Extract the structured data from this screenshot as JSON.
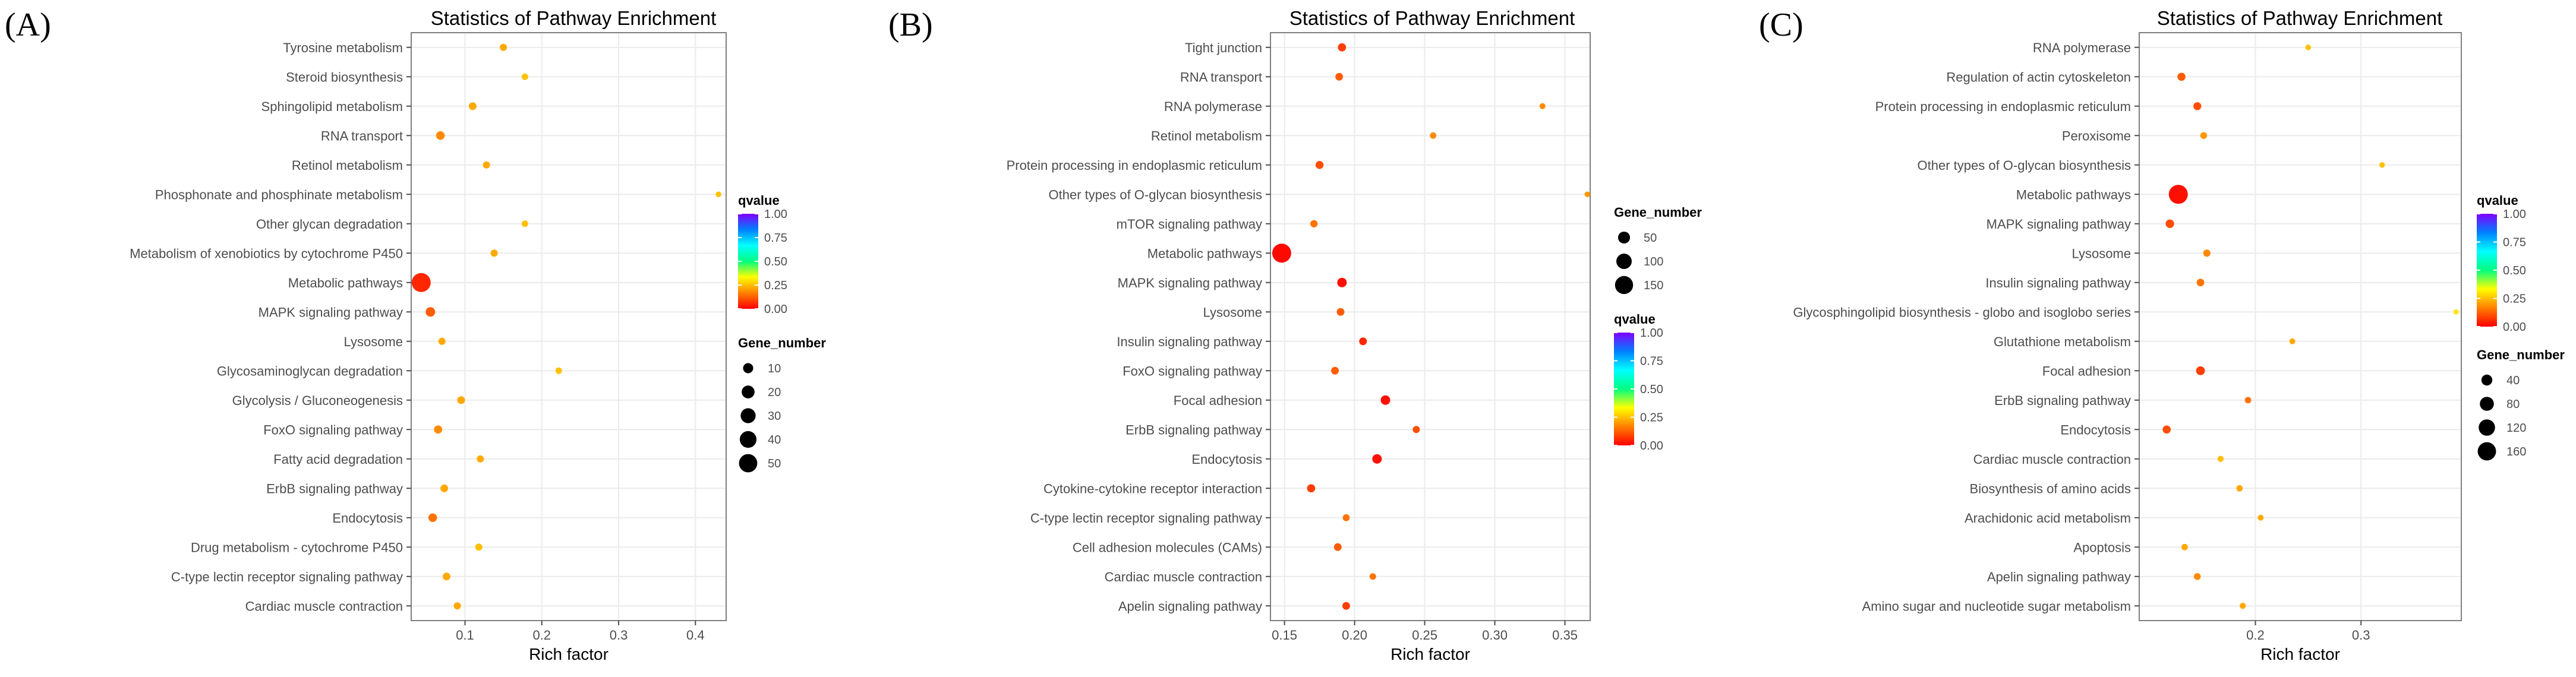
{
  "colors": {
    "panel_bg": "#ffffff",
    "panel_border": "#7f7f7f",
    "grid": "#ebebeb",
    "text": "#000000",
    "axis_text": "#4d4d4d",
    "gradient_stops": [
      "#ff0000",
      "#ff8000",
      "#ffff00",
      "#00ff80",
      "#00ffff",
      "#0080ff",
      "#8000ff"
    ]
  },
  "chart_data": [
    {
      "id": "A",
      "panel_label": "(A)",
      "type": "scatter",
      "title": "Statistics of Pathway Enrichment",
      "xlabel": "Rich factor",
      "ylabel": "",
      "xlim": [
        0.03,
        0.44
      ],
      "xticks": [
        0.1,
        0.2,
        0.3,
        0.4
      ],
      "xtick_labels": [
        "0.1",
        "0.2",
        "0.3",
        "0.4"
      ],
      "legend_qvalue": {
        "title": "qvalue",
        "range": [
          0,
          1
        ],
        "ticks": [
          "1.00",
          "0.75",
          "0.50",
          "0.25",
          "0.00"
        ],
        "position": "right"
      },
      "legend_size": {
        "title": "Gene_number",
        "min": 1,
        "max": 55,
        "ticks": [
          10,
          20,
          30,
          40,
          50
        ],
        "tick_labels": [
          "10",
          "20",
          "30",
          "40",
          "50"
        ],
        "position": "right"
      },
      "categories": [
        "Tyrosine metabolism",
        "Steroid biosynthesis",
        "Sphingolipid metabolism",
        "RNA transport",
        "Retinol metabolism",
        "Phosphonate and phosphinate metabolism",
        "Other glycan degradation",
        "Metabolism of xenobiotics by cytochrome P450",
        "Metabolic pathways",
        "MAPK signaling pathway",
        "Lysosome",
        "Glycosaminoglycan degradation",
        "Glycolysis / Gluconeogenesis",
        "FoxO signaling pathway",
        "Fatty acid degradation",
        "ErbB signaling pathway",
        "Endocytosis",
        "Drug metabolism - cytochrome P450",
        "C-type lectin receptor signaling pathway",
        "Cardiac muscle contraction"
      ],
      "rich_factor": [
        0.15,
        0.178,
        0.11,
        0.068,
        0.128,
        0.43,
        0.178,
        0.138,
        0.043,
        0.055,
        0.07,
        0.222,
        0.095,
        0.065,
        0.12,
        0.073,
        0.058,
        0.118,
        0.076,
        0.09
      ],
      "gene_number": [
        3,
        2,
        4,
        6,
        3,
        1,
        2,
        3,
        55,
        8,
        3,
        2,
        4,
        5,
        3,
        4,
        6,
        3,
        4,
        3
      ],
      "qvalue": [
        0.22,
        0.25,
        0.22,
        0.18,
        0.22,
        0.25,
        0.25,
        0.22,
        0.05,
        0.12,
        0.22,
        0.25,
        0.22,
        0.18,
        0.22,
        0.22,
        0.15,
        0.25,
        0.22,
        0.22
      ]
    },
    {
      "id": "B",
      "panel_label": "(B)",
      "type": "scatter",
      "title": "Statistics of Pathway Enrichment",
      "xlabel": "Rich factor",
      "ylabel": "",
      "xlim": [
        0.14,
        0.368
      ],
      "xticks": [
        0.15,
        0.2,
        0.25,
        0.3,
        0.35
      ],
      "xtick_labels": [
        "0.15",
        "0.20",
        "0.25",
        "0.30",
        "0.35"
      ],
      "legend_qvalue": {
        "title": "qvalue",
        "range": [
          0,
          1
        ],
        "ticks": [
          "1.00",
          "0.75",
          "0.50",
          "0.25",
          "0.00"
        ],
        "position": "right"
      },
      "legend_size": {
        "title": "Gene_number",
        "min": 1,
        "max": 170,
        "ticks": [
          50,
          100,
          150
        ],
        "tick_labels": [
          "50",
          "100",
          "150"
        ],
        "position": "right"
      },
      "categories": [
        "Tight junction",
        "RNA transport",
        "RNA polymerase",
        "Retinol metabolism",
        "Protein processing in endoplasmic reticulum",
        "Other types of O-glycan biosynthesis",
        "mTOR signaling pathway",
        "Metabolic pathways",
        "MAPK signaling pathway",
        "Lysosome",
        "Insulin signaling pathway",
        "FoxO signaling pathway",
        "Focal adhesion",
        "ErbB signaling pathway",
        "Endocytosis",
        "Cytokine-cytokine receptor interaction",
        "C-type lectin receptor signaling pathway",
        "Cell adhesion molecules (CAMs)",
        "Cardiac muscle contraction",
        "Apelin signaling pathway"
      ],
      "rich_factor": [
        0.191,
        0.189,
        0.334,
        0.256,
        0.175,
        0.366,
        0.171,
        0.148,
        0.191,
        0.19,
        0.206,
        0.186,
        0.222,
        0.244,
        0.216,
        0.169,
        0.194,
        0.188,
        0.213,
        0.194
      ],
      "gene_number": [
        15,
        12,
        4,
        6,
        14,
        3,
        10,
        170,
        25,
        12,
        12,
        12,
        25,
        9,
        25,
        15,
        8,
        12,
        6,
        12
      ],
      "qvalue": [
        0.08,
        0.12,
        0.18,
        0.18,
        0.1,
        0.2,
        0.15,
        0.01,
        0.02,
        0.12,
        0.05,
        0.12,
        0.02,
        0.1,
        0.02,
        0.08,
        0.15,
        0.12,
        0.15,
        0.08
      ]
    },
    {
      "id": "C",
      "panel_label": "(C)",
      "type": "scatter",
      "title": "Statistics of Pathway Enrichment",
      "xlabel": "Rich factor",
      "ylabel": "",
      "xlim": [
        0.09,
        0.395
      ],
      "xticks": [
        0.2,
        0.3
      ],
      "xtick_labels": [
        "0.2",
        "0.3"
      ],
      "legend_qvalue": {
        "title": "qvalue",
        "range": [
          0,
          1
        ],
        "ticks": [
          "1.00",
          "0.75",
          "0.50",
          "0.25",
          "0.00"
        ],
        "position": "right"
      },
      "legend_size": {
        "title": "Gene_number",
        "min": 1,
        "max": 175,
        "ticks": [
          40,
          80,
          120,
          160
        ],
        "tick_labels": [
          "40",
          "80",
          "120",
          "160"
        ],
        "position": "right"
      },
      "categories": [
        "RNA polymerase",
        "Regulation of actin cytoskeleton",
        "Protein processing in endoplasmic reticulum",
        "Peroxisome",
        "Other types of O-glycan biosynthesis",
        "Metabolic pathways",
        "MAPK signaling pathway",
        "Lysosome",
        "Insulin signaling pathway",
        "Glycosphingolipid biosynthesis - globo and isoglobo series",
        "Glutathione metabolism",
        "Focal adhesion",
        "ErbB signaling pathway",
        "Endocytosis",
        "Cardiac muscle contraction",
        "Biosynthesis of amino acids",
        "Arachidonic acid metabolism",
        "Apoptosis",
        "Apelin signaling pathway",
        "Amino sugar and nucleotide sugar metabolism"
      ],
      "rich_factor": [
        0.25,
        0.13,
        0.145,
        0.151,
        0.32,
        0.127,
        0.119,
        0.154,
        0.148,
        0.39,
        0.235,
        0.148,
        0.193,
        0.116,
        0.167,
        0.185,
        0.205,
        0.133,
        0.145,
        0.188
      ],
      "gene_number": [
        3,
        15,
        14,
        8,
        3,
        175,
        18,
        10,
        12,
        2,
        4,
        20,
        6,
        15,
        5,
        6,
        4,
        6,
        8,
        5
      ],
      "qvalue": [
        0.25,
        0.12,
        0.1,
        0.2,
        0.25,
        0.02,
        0.1,
        0.18,
        0.15,
        0.3,
        0.22,
        0.08,
        0.15,
        0.1,
        0.25,
        0.22,
        0.22,
        0.22,
        0.18,
        0.22
      ]
    }
  ]
}
